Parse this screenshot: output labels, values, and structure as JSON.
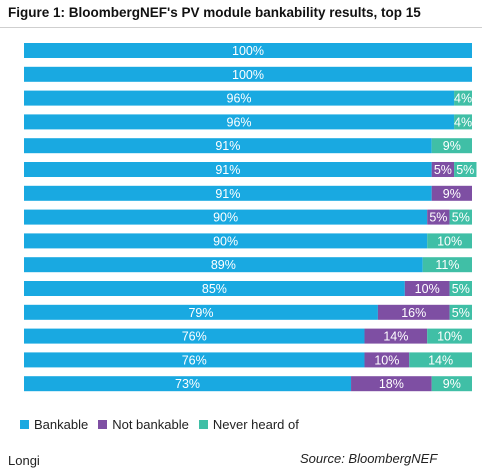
{
  "chart_data": {
    "type": "bar",
    "orientation": "horizontal",
    "stacked": true,
    "title": "Figure 1:  BloombergNEF's PV module bankability results, top 15",
    "xlim": [
      0,
      100
    ],
    "value_suffix": "%",
    "series": [
      {
        "name": "Bankable",
        "color": "#19a9e1",
        "values": [
          100,
          100,
          96,
          96,
          91,
          91,
          91,
          90,
          90,
          89,
          85,
          79,
          76,
          76,
          73
        ]
      },
      {
        "name": "Not bankable",
        "color": "#7e4fa3",
        "values": [
          0,
          0,
          0,
          0,
          0,
          5,
          9,
          5,
          0,
          0,
          10,
          16,
          14,
          10,
          18
        ]
      },
      {
        "name": "Never heard of",
        "color": "#40bfa6",
        "values": [
          0,
          0,
          4,
          4,
          9,
          5,
          0,
          5,
          10,
          11,
          5,
          5,
          10,
          14,
          9
        ]
      }
    ],
    "legend_position": "bottom-left"
  },
  "footer": {
    "highlight_label": "Longi",
    "source": "Source: BloombergNEF"
  }
}
